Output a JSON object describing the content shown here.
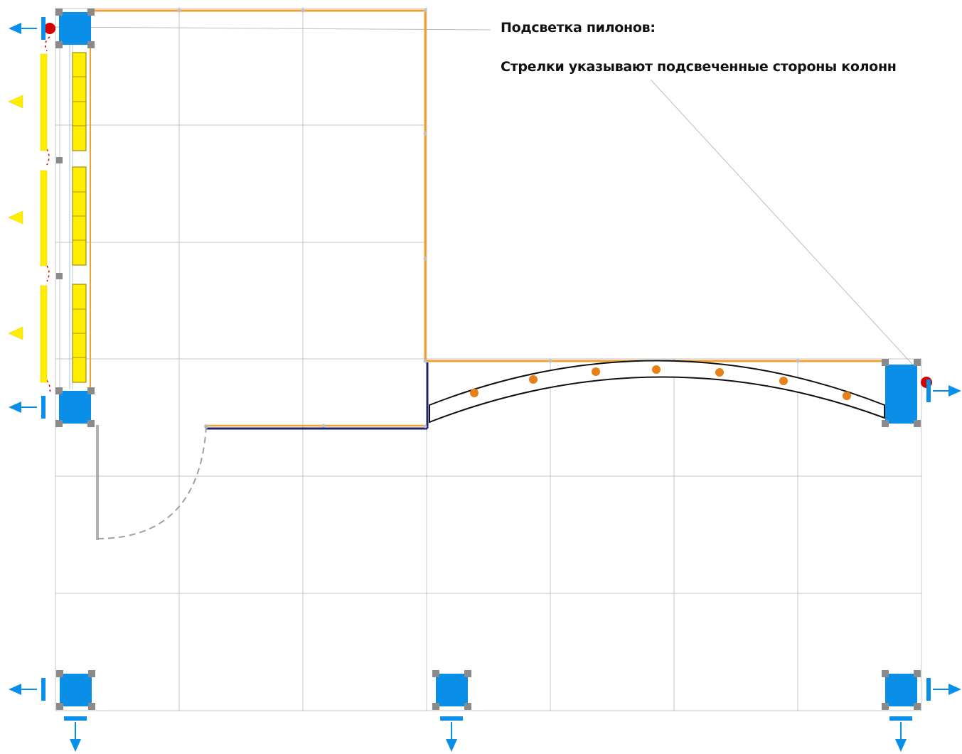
{
  "annotations": {
    "title": "Подсветка пилонов:",
    "arrows_note": "Стрелки указывают подсвеченные стороны колонн"
  },
  "colors": {
    "grid": "#c4c4c4",
    "wall_orange": "#f0a030",
    "wall_navy": "#1c2470",
    "column_blue": "#0a8fe8",
    "anchor_grey": "#8a8a8a",
    "yellow_light": "#ffee00",
    "red_marker": "#d40000",
    "orange_spot": "#e8801a",
    "door_grey": "#b0b0b0"
  },
  "legend_icons": [
    "arrow-left-icon",
    "arrow-right-icon",
    "arrow-down-icon"
  ]
}
